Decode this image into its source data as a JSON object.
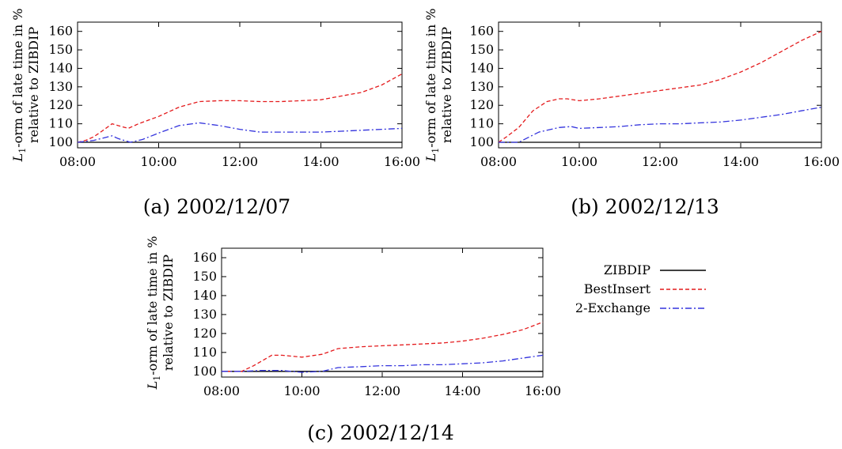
{
  "legend": {
    "items": [
      {
        "label": "ZIBDIP",
        "color": "#000000",
        "dash": "solid"
      },
      {
        "label": "BestInsert",
        "color": "#e41a1c",
        "dash": "dashed"
      },
      {
        "label": "2-Exchange",
        "color": "#3333dd",
        "dash": "dashdot"
      }
    ]
  },
  "chart_data": [
    {
      "type": "line",
      "caption": "(a) 2002/12/07",
      "ylabel_line1": "L1-orm of late time in %",
      "ylabel_line2": "relative to ZIBDIP",
      "x_ticks": [
        "08:00",
        "10:00",
        "12:00",
        "14:00",
        "16:00"
      ],
      "y_ticks": [
        100,
        110,
        120,
        130,
        140,
        150,
        160
      ],
      "xlim": [
        8,
        16
      ],
      "ylim": [
        97,
        165
      ],
      "series": [
        {
          "name": "ZIBDIP",
          "x": [
            8,
            16
          ],
          "y": [
            100,
            100
          ]
        },
        {
          "name": "BestInsert",
          "x": [
            8,
            8.2,
            8.4,
            8.6,
            8.85,
            9.0,
            9.25,
            9.5,
            10.0,
            10.5,
            11.0,
            11.5,
            12.0,
            12.5,
            13.0,
            13.5,
            14.0,
            14.5,
            15.0,
            15.5,
            16.0
          ],
          "y": [
            100,
            101,
            103,
            106,
            110,
            109,
            107.5,
            110,
            114,
            119,
            122,
            122.5,
            122.5,
            122,
            122,
            122.5,
            123,
            125,
            127,
            131,
            137
          ]
        },
        {
          "name": "2-Exchange",
          "x": [
            8,
            8.4,
            8.85,
            9.0,
            9.3,
            9.6,
            10.0,
            10.5,
            11.0,
            11.5,
            12.0,
            12.5,
            13.0,
            13.5,
            14.0,
            14.5,
            15.0,
            15.5,
            16.0
          ],
          "y": [
            100,
            101,
            103.5,
            102,
            100,
            101.5,
            105,
            109,
            110.5,
            109,
            107,
            105.5,
            105.5,
            105.5,
            105.5,
            106,
            106.5,
            107,
            107.5
          ]
        }
      ]
    },
    {
      "type": "line",
      "caption": "(b) 2002/12/13",
      "ylabel_line1": "L1-orm of late time in %",
      "ylabel_line2": "relative to ZIBDIP",
      "x_ticks": [
        "08:00",
        "10:00",
        "12:00",
        "14:00",
        "16:00"
      ],
      "y_ticks": [
        100,
        110,
        120,
        130,
        140,
        150,
        160
      ],
      "xlim": [
        8,
        16
      ],
      "ylim": [
        97,
        165
      ],
      "series": [
        {
          "name": "ZIBDIP",
          "x": [
            8,
            16
          ],
          "y": [
            100,
            100
          ]
        },
        {
          "name": "BestInsert",
          "x": [
            8,
            8.2,
            8.5,
            8.85,
            9.2,
            9.5,
            9.7,
            10.0,
            10.5,
            11.0,
            11.5,
            12.0,
            12.5,
            13.0,
            13.5,
            14.0,
            14.5,
            15.0,
            15.5,
            16.0
          ],
          "y": [
            100,
            103,
            108,
            117,
            122,
            123.5,
            123.5,
            122.5,
            123.5,
            125,
            126.5,
            128,
            129.5,
            131,
            134,
            138,
            143,
            149,
            155,
            160
          ]
        },
        {
          "name": "2-Exchange",
          "x": [
            8,
            8.5,
            9.0,
            9.5,
            9.8,
            10.0,
            10.5,
            11.0,
            11.5,
            12.0,
            12.5,
            13.0,
            13.5,
            14.0,
            14.5,
            15.0,
            15.5,
            16.0
          ],
          "y": [
            100,
            100,
            105.5,
            108,
            108.5,
            107.5,
            108,
            108.5,
            109.5,
            110,
            110,
            110.5,
            111,
            112,
            113.5,
            115,
            117,
            119
          ]
        }
      ]
    },
    {
      "type": "line",
      "caption": "(c) 2002/12/14",
      "ylabel_line1": "L1-orm of late time in %",
      "ylabel_line2": "relative to ZIBDIP",
      "x_ticks": [
        "08:00",
        "10:00",
        "12:00",
        "14:00",
        "16:00"
      ],
      "y_ticks": [
        100,
        110,
        120,
        130,
        140,
        150,
        160
      ],
      "xlim": [
        8,
        16
      ],
      "ylim": [
        97,
        165
      ],
      "series": [
        {
          "name": "ZIBDIP",
          "x": [
            8,
            16
          ],
          "y": [
            100,
            100
          ]
        },
        {
          "name": "BestInsert",
          "x": [
            8,
            8.5,
            8.8,
            9.25,
            9.5,
            10.0,
            10.5,
            10.9,
            11.5,
            12.0,
            12.5,
            13.0,
            13.5,
            14.0,
            14.5,
            15.0,
            15.5,
            16.0
          ],
          "y": [
            100,
            100,
            103,
            108.5,
            108.5,
            107.5,
            109,
            112,
            113,
            113.5,
            114,
            114.5,
            115,
            116,
            117.5,
            119.5,
            122,
            126
          ]
        },
        {
          "name": "2-Exchange",
          "x": [
            8,
            8.5,
            9.0,
            9.5,
            10.0,
            10.5,
            10.9,
            11.5,
            12.0,
            12.5,
            13.0,
            13.5,
            14.0,
            14.5,
            15.0,
            15.5,
            16.0
          ],
          "y": [
            100,
            100,
            100.5,
            100.5,
            99.5,
            100,
            102,
            102.5,
            103,
            103,
            103.5,
            103.5,
            104,
            104.5,
            105.5,
            107,
            108.5
          ]
        }
      ]
    }
  ]
}
